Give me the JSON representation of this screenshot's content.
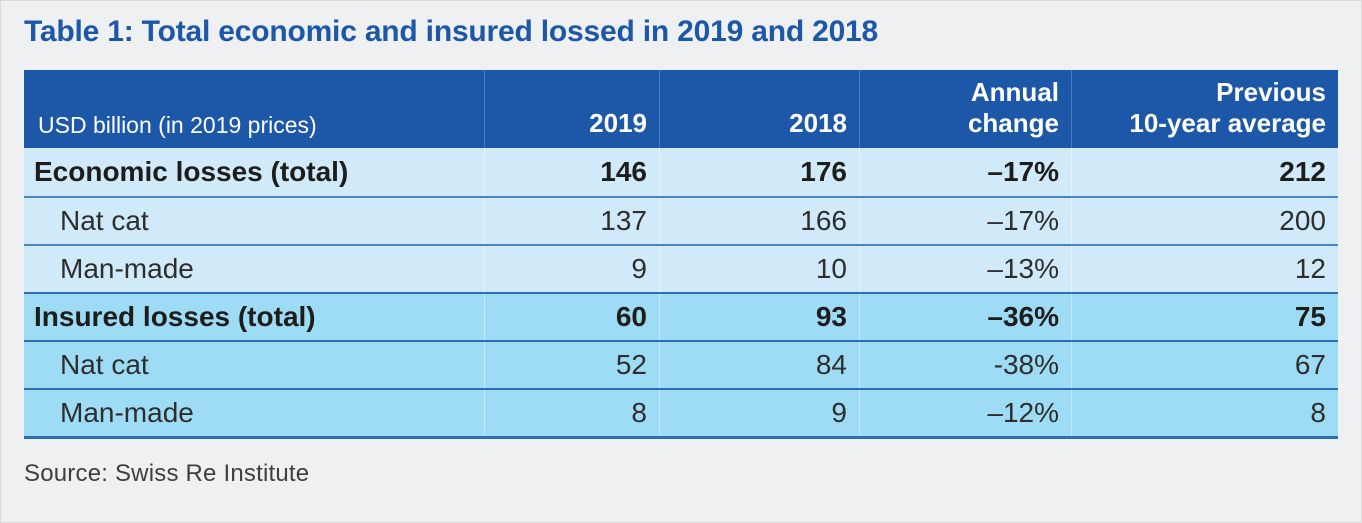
{
  "page": {
    "title": "Table 1: Total economic and insured lossed in 2019 and 2018",
    "source": "Source: Swiss Re Institute"
  },
  "table": {
    "header": {
      "label": "USD billion (in 2019 prices)",
      "col_2019": "2019",
      "col_2018": "2018",
      "col_change": "Annual\nchange",
      "col_avg": "Previous\n10-year average"
    },
    "rows": [
      {
        "label": "Economic losses (total)",
        "y2019": "146",
        "y2018": "176",
        "change": "–17%",
        "avg": "212"
      },
      {
        "label": "Nat cat",
        "y2019": "137",
        "y2018": "166",
        "change": "–17%",
        "avg": "200"
      },
      {
        "label": "Man-made",
        "y2019": "9",
        "y2018": "10",
        "change": "–13%",
        "avg": "12"
      },
      {
        "label": "Insured losses (total)",
        "y2019": "60",
        "y2018": "93",
        "change": "–36%",
        "avg": "75"
      },
      {
        "label": "Nat cat",
        "y2019": "52",
        "y2018": "84",
        "change": "-38%",
        "avg": "67"
      },
      {
        "label": "Man-made",
        "y2019": "8",
        "y2018": "9",
        "change": "–12%",
        "avg": "8"
      }
    ]
  },
  "chart_data": {
    "type": "table",
    "title": "Table 1: Total economic and insured lossed in 2019 and 2018",
    "units": "USD billion (in 2019 prices)",
    "columns": [
      "USD billion (in 2019 prices)",
      "2019",
      "2018",
      "Annual change",
      "Previous 10-year average"
    ],
    "rows": [
      [
        "Economic losses (total)",
        146,
        176,
        "-17%",
        212
      ],
      [
        "Nat cat",
        137,
        166,
        "-17%",
        200
      ],
      [
        "Man-made",
        9,
        10,
        "-13%",
        12
      ],
      [
        "Insured losses (total)",
        60,
        93,
        "-36%",
        75
      ],
      [
        "Nat cat",
        52,
        84,
        "-38%",
        67
      ],
      [
        "Man-made",
        8,
        9,
        "-12%",
        8
      ]
    ],
    "source": "Source: Swiss Re Institute"
  },
  "colors": {
    "header_bg": "#1d57a8",
    "title_text": "#1d57a8",
    "section_economic_bg": "#d0eafa",
    "section_insured_bg": "#9edcf6",
    "divider_light": "#4c86c0",
    "divider_dark": "#2d6fb3",
    "page_bg": "#eef0f2"
  }
}
